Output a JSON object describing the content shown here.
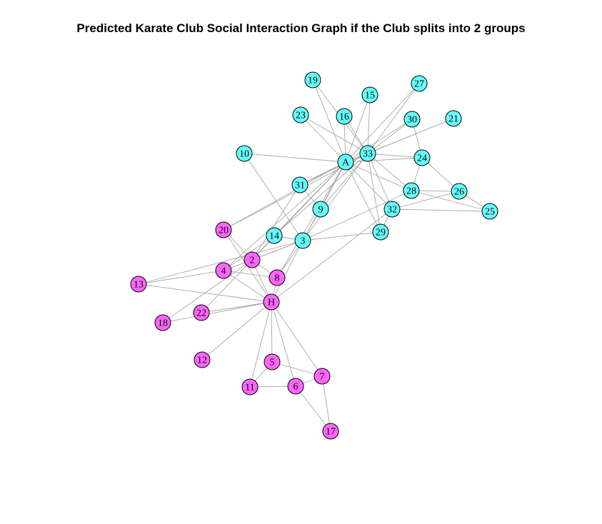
{
  "title": "Predicted Karate Club Social Interaction Graph if the Club splits into 2 groups",
  "colors": {
    "group_a": "#66ffff",
    "group_h": "#ff66ff",
    "edge": "#a8a8a8"
  },
  "groups": {
    "A": [
      "A",
      "33",
      "9",
      "10",
      "14",
      "15",
      "16",
      "19",
      "21",
      "23",
      "24",
      "25",
      "26",
      "27",
      "28",
      "29",
      "30",
      "31",
      "32",
      "3"
    ],
    "H": [
      "H",
      "2",
      "4",
      "5",
      "6",
      "7",
      "8",
      "11",
      "12",
      "13",
      "17",
      "18",
      "20",
      "22"
    ]
  },
  "nodes": [
    "A",
    "33",
    "19",
    "15",
    "27",
    "23",
    "16",
    "30",
    "21",
    "10",
    "24",
    "31",
    "28",
    "26",
    "9",
    "32",
    "25",
    "20",
    "14",
    "3",
    "29",
    "2",
    "4",
    "8",
    "13",
    "H",
    "22",
    "18",
    "12",
    "5",
    "7",
    "11",
    "6",
    "17"
  ],
  "edges": [
    [
      "A",
      "33"
    ],
    [
      "A",
      "19"
    ],
    [
      "A",
      "15"
    ],
    [
      "A",
      "27"
    ],
    [
      "A",
      "23"
    ],
    [
      "A",
      "16"
    ],
    [
      "A",
      "30"
    ],
    [
      "A",
      "21"
    ],
    [
      "A",
      "10"
    ],
    [
      "A",
      "24"
    ],
    [
      "A",
      "31"
    ],
    [
      "A",
      "28"
    ],
    [
      "A",
      "9"
    ],
    [
      "A",
      "32"
    ],
    [
      "A",
      "3"
    ],
    [
      "A",
      "14"
    ],
    [
      "A",
      "29"
    ],
    [
      "A",
      "20"
    ],
    [
      "A",
      "2"
    ],
    [
      "A",
      "4"
    ],
    [
      "A",
      "8"
    ],
    [
      "33",
      "19"
    ],
    [
      "33",
      "15"
    ],
    [
      "33",
      "27"
    ],
    [
      "33",
      "23"
    ],
    [
      "33",
      "16"
    ],
    [
      "33",
      "30"
    ],
    [
      "33",
      "21"
    ],
    [
      "33",
      "24"
    ],
    [
      "33",
      "31"
    ],
    [
      "33",
      "9"
    ],
    [
      "33",
      "32"
    ],
    [
      "33",
      "3"
    ],
    [
      "33",
      "29"
    ],
    [
      "33",
      "28"
    ],
    [
      "33",
      "20"
    ],
    [
      "33",
      "14"
    ],
    [
      "30",
      "24"
    ],
    [
      "24",
      "28"
    ],
    [
      "24",
      "26"
    ],
    [
      "26",
      "28"
    ],
    [
      "26",
      "32"
    ],
    [
      "25",
      "28"
    ],
    [
      "25",
      "32"
    ],
    [
      "25",
      "26"
    ],
    [
      "28",
      "3"
    ],
    [
      "32",
      "29"
    ],
    [
      "32",
      "H"
    ],
    [
      "31",
      "9"
    ],
    [
      "31",
      "2"
    ],
    [
      "29",
      "3"
    ],
    [
      "9",
      "3"
    ],
    [
      "10",
      "3"
    ],
    [
      "14",
      "3"
    ],
    [
      "14",
      "4"
    ],
    [
      "14",
      "2"
    ],
    [
      "3",
      "2"
    ],
    [
      "3",
      "4"
    ],
    [
      "3",
      "8"
    ],
    [
      "3",
      "H"
    ],
    [
      "3",
      "13"
    ],
    [
      "2",
      "4"
    ],
    [
      "2",
      "8"
    ],
    [
      "2",
      "H"
    ],
    [
      "2",
      "18"
    ],
    [
      "2",
      "22"
    ],
    [
      "2",
      "20"
    ],
    [
      "4",
      "8"
    ],
    [
      "4",
      "13"
    ],
    [
      "4",
      "H"
    ],
    [
      "8",
      "H"
    ],
    [
      "H",
      "13"
    ],
    [
      "H",
      "20"
    ],
    [
      "H",
      "22"
    ],
    [
      "H",
      "18"
    ],
    [
      "H",
      "12"
    ],
    [
      "H",
      "5"
    ],
    [
      "H",
      "11"
    ],
    [
      "H",
      "6"
    ],
    [
      "H",
      "7"
    ],
    [
      "5",
      "7"
    ],
    [
      "5",
      "11"
    ],
    [
      "6",
      "7"
    ],
    [
      "6",
      "11"
    ],
    [
      "6",
      "17"
    ],
    [
      "7",
      "17"
    ]
  ]
}
